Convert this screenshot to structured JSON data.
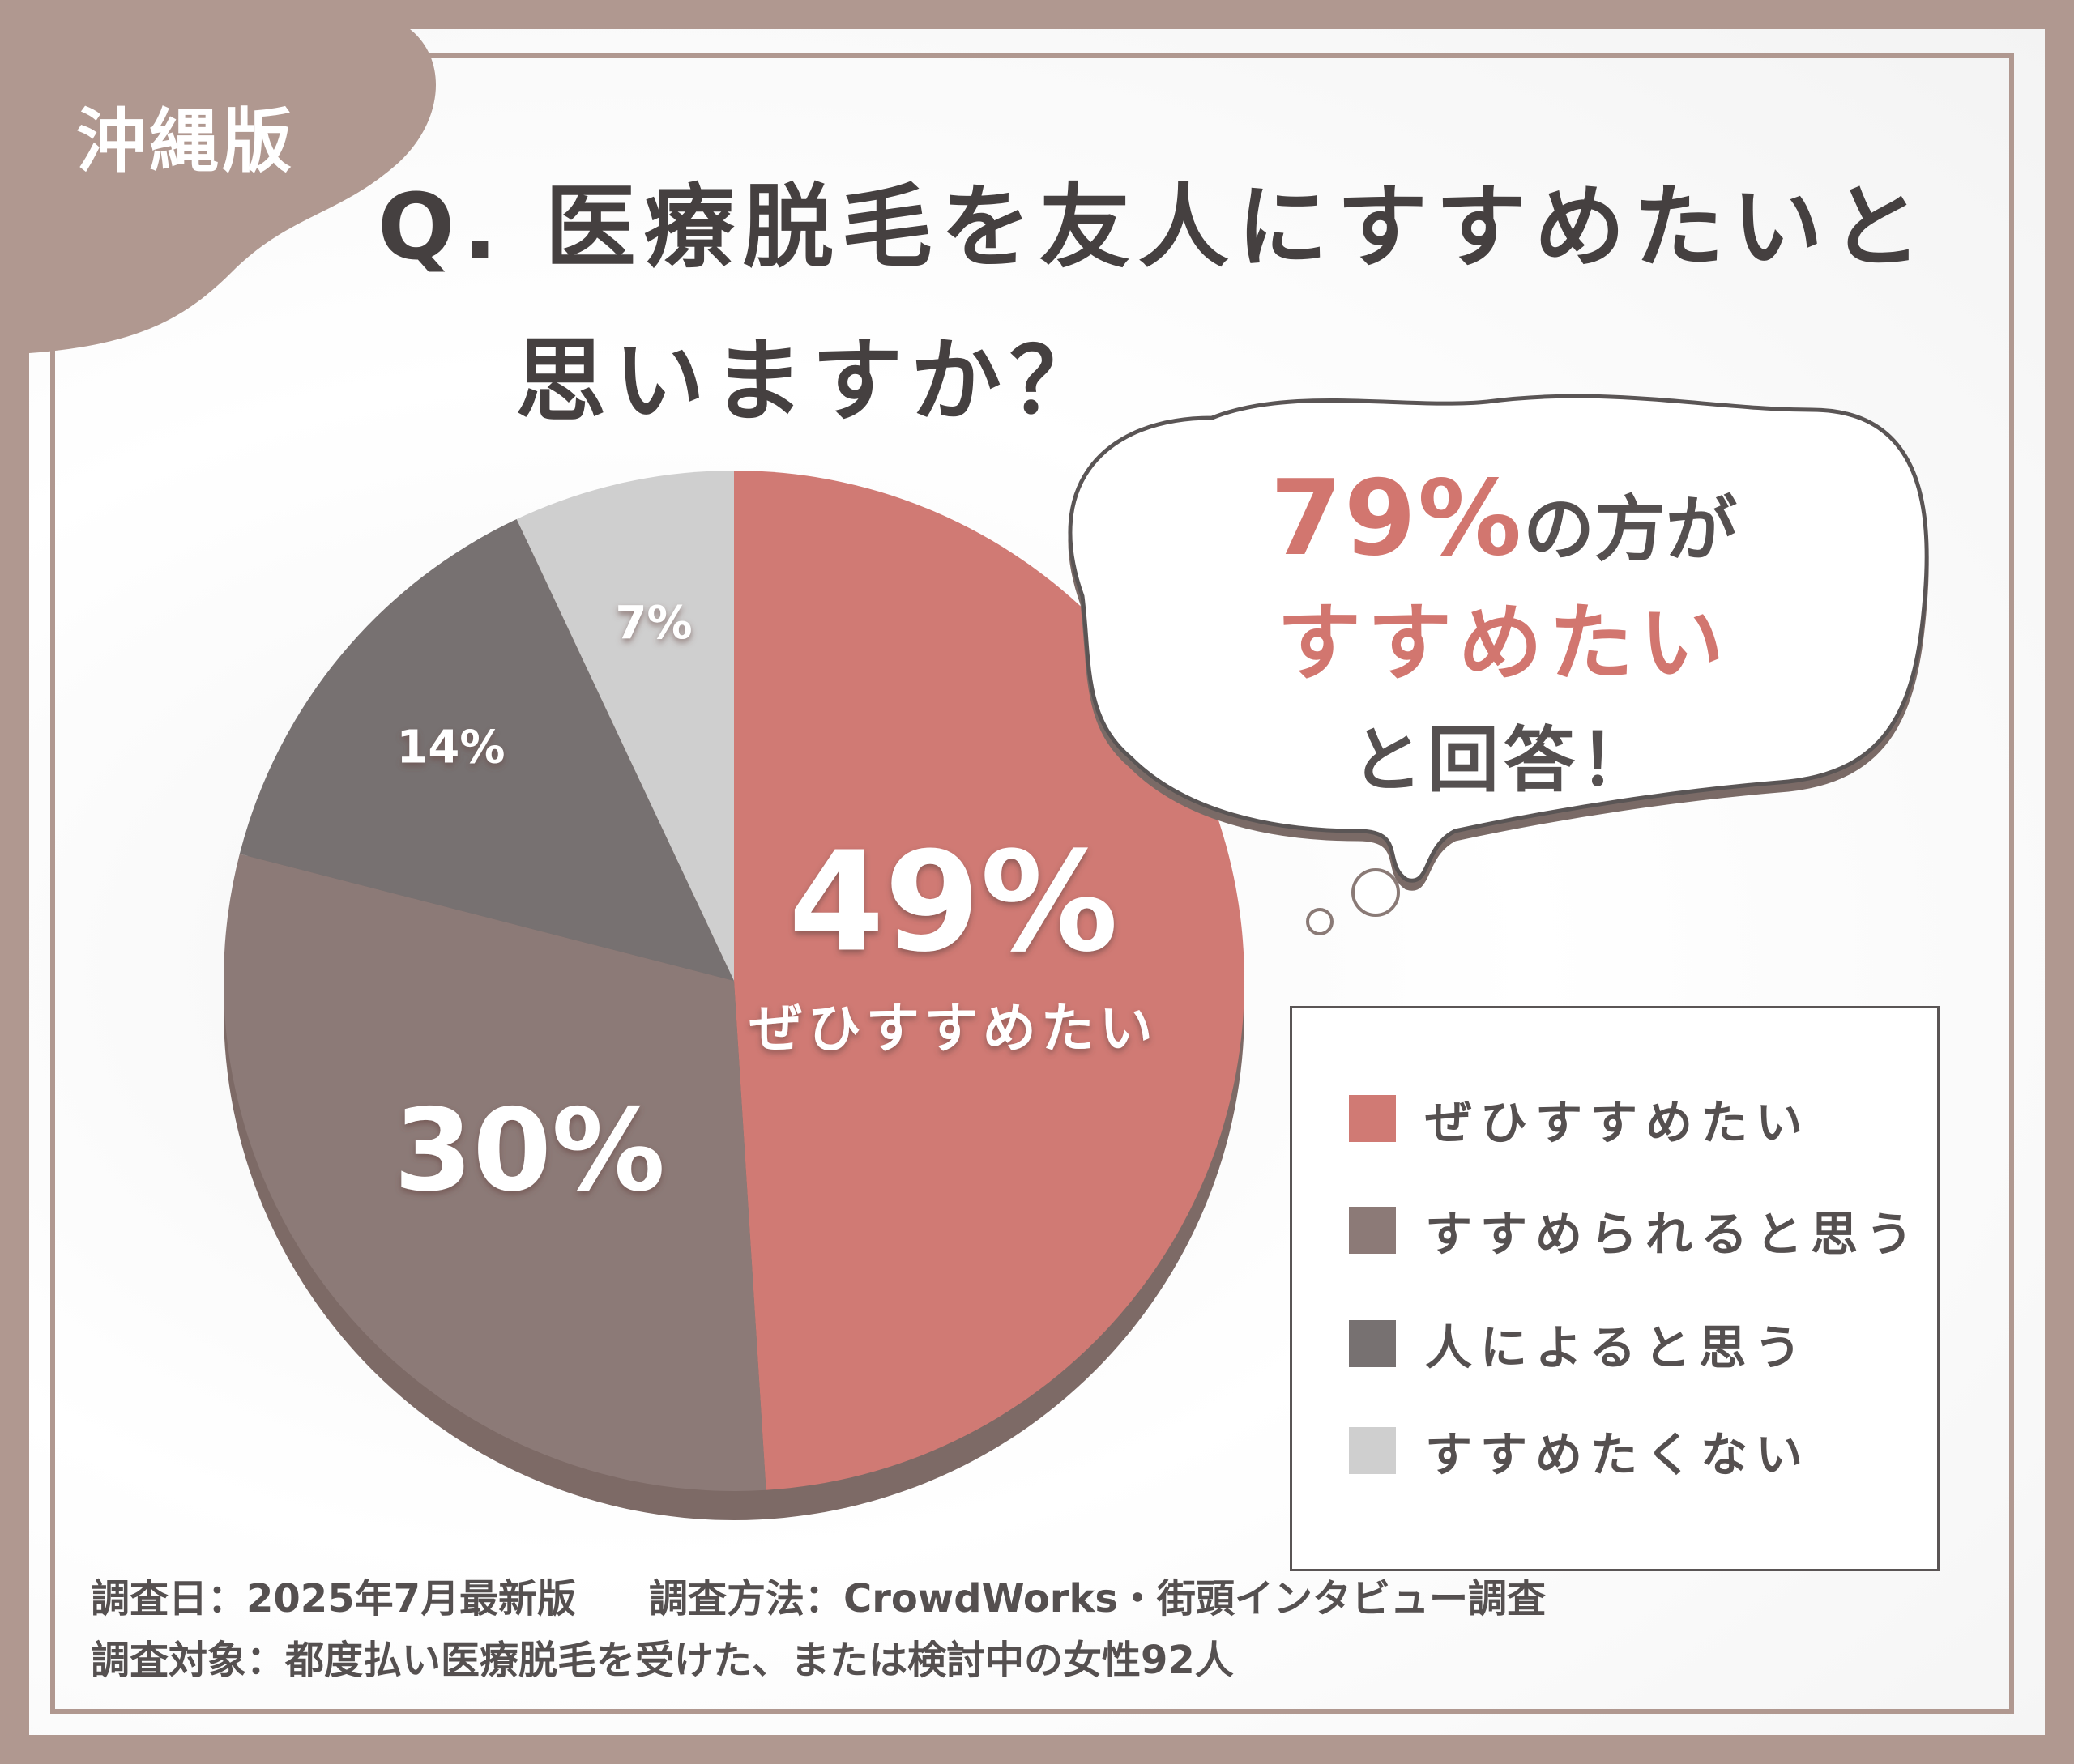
{
  "region_tag": "沖縄版",
  "title": {
    "line1": "Q. 医療脱毛を友人にすすめたいと",
    "line2": "思いますか？"
  },
  "callout": {
    "percent": "79%",
    "line1_suffix": "の方が",
    "line2": "すすめたい",
    "line3": "と回答！"
  },
  "chart_data": {
    "type": "pie",
    "categories": [
      "ぜひすすめたい",
      "すすめられると思う",
      "人によると思う",
      "すすめたくない"
    ],
    "values": [
      49,
      30,
      14,
      7
    ],
    "colors": [
      "#d07a74",
      "#8c7a77",
      "#777171",
      "#cfcfcf"
    ],
    "slice_labels": [
      "49%",
      "30%",
      "14%",
      "7%"
    ],
    "slice_sublabel": "ぜひすすめたい",
    "legend_position": "right"
  },
  "legend": {
    "items": [
      {
        "label": "ぜひすすめたい",
        "color": "#d07a74"
      },
      {
        "label": "すすめられると思う",
        "color": "#8c7a77"
      },
      {
        "label": "人によると思う",
        "color": "#777171"
      },
      {
        "label": "すすめたくない",
        "color": "#cfcfcf"
      }
    ]
  },
  "footer": {
    "survey_date": "調査日：2025年7月最新版",
    "survey_method": "調査方法：CrowdWorks・街頭インタビュー調査",
    "survey_target": "調査対象：都度払い医療脱毛を受けた、または検討中の女性92人"
  },
  "theme": {
    "frame": "#b09890",
    "text": "#454040",
    "accent": "#d2766f"
  }
}
